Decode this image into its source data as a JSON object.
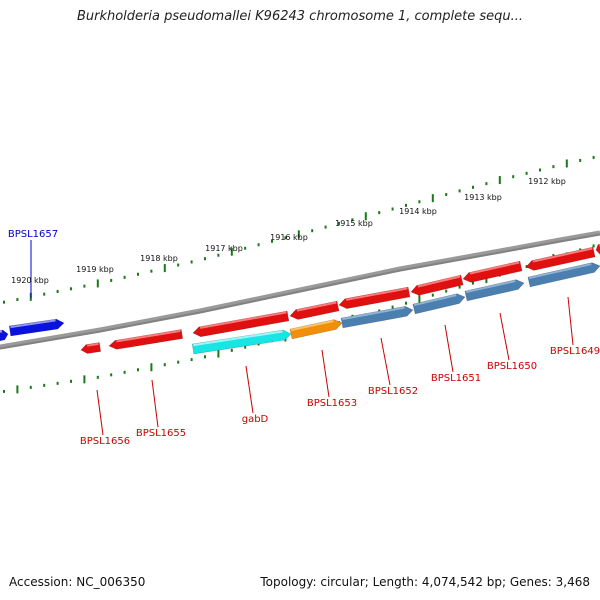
{
  "title": "Burkholderia pseudomallei K96243 chromosome 1, complete sequ...",
  "colors": {
    "backbone": "#7f7f7f",
    "tick": "#1a7a1a",
    "gene_red": "#e01010",
    "gene_red_highlight": "#ff7a7a",
    "gene_blue": "#0a12e0",
    "gene_cyan": "#19e5e5",
    "gene_orange": "#f0900a",
    "gene_steel": "#4a7fb0",
    "label_red": "#cc0000",
    "label_blue": "#0000cc"
  },
  "ticks": [
    {
      "label": "1920 kbp"
    },
    {
      "label": "1919 kbp"
    },
    {
      "label": "1918 kbp"
    },
    {
      "label": "1917 kbp"
    },
    {
      "label": "1916 kbp"
    },
    {
      "label": "1915 kbp"
    },
    {
      "label": "1914 kbp"
    },
    {
      "label": "1913 kbp"
    },
    {
      "label": "1912 kbp"
    }
  ],
  "genes": [
    {
      "name": "BPSL1657",
      "color": "blue",
      "strand": "forward"
    },
    {
      "name": "BPSL1656",
      "color": "red",
      "strand": "reverse"
    },
    {
      "name": "BPSL1655",
      "color": "red",
      "strand": "reverse"
    },
    {
      "name": "gabD",
      "color": "cyan",
      "strand": "forward"
    },
    {
      "name": "BPSL1653",
      "color": "orange",
      "strand": "forward"
    },
    {
      "name": "BPSL1652",
      "color": "steel",
      "strand": "forward"
    },
    {
      "name": "BPSL1651",
      "color": "steel",
      "strand": "forward"
    },
    {
      "name": "BPSL1650",
      "color": "steel",
      "strand": "forward"
    },
    {
      "name": "BPSL1649",
      "color": "steel",
      "strand": "forward"
    }
  ],
  "footer": {
    "accession": "Accession: NC_006350",
    "summary": "Topology: circular; Length: 4,074,542 bp; Genes: 3,468"
  }
}
